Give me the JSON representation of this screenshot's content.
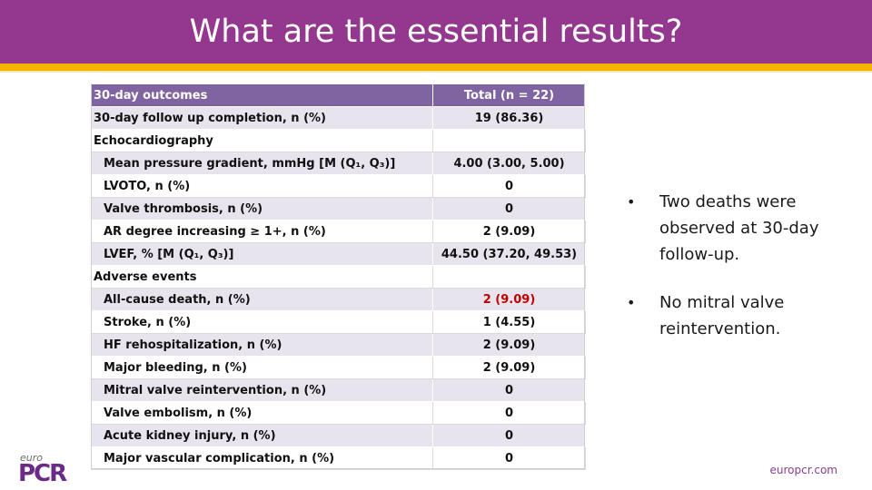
{
  "slide": {
    "title": "What are the essential results?",
    "colors": {
      "header": "#93388e",
      "accent_bar": "#f5b300",
      "table_header": "#8064a2",
      "highlight": "#c00000"
    }
  },
  "table": {
    "headers": [
      "30-day outcomes",
      "Total (n = 22)"
    ],
    "rows": [
      {
        "label": "30-day follow up completion, n (%)",
        "value": "19 (86.36)"
      },
      {
        "label": "Echocardiography",
        "value": ""
      },
      {
        "label": "Mean pressure gradient, mmHg [M (Q₁, Q₃)]",
        "value": "4.00 (3.00, 5.00)"
      },
      {
        "label": "LVOTO, n (%)",
        "value": "0"
      },
      {
        "label": "Valve thrombosis, n (%)",
        "value": "0"
      },
      {
        "label": "AR degree increasing ≥ 1+, n (%)",
        "value": "2 (9.09)"
      },
      {
        "label": "LVEF, % [M (Q₁, Q₃)]",
        "value": "44.50 (37.20, 49.53)"
      },
      {
        "label": "Adverse events",
        "value": ""
      },
      {
        "label": "All-cause death, n (%)",
        "value": "2 (9.09)"
      },
      {
        "label": "Stroke, n (%)",
        "value": "1 (4.55)"
      },
      {
        "label": "HF rehospitalization, n (%)",
        "value": "2 (9.09)"
      },
      {
        "label": "Major bleeding, n (%)",
        "value": "2 (9.09)"
      },
      {
        "label": "Mitral valve reintervention, n (%)",
        "value": "0"
      },
      {
        "label": "Valve embolism, n (%)",
        "value": "0"
      },
      {
        "label": "Acute kidney injury, n (%)",
        "value": "0"
      },
      {
        "label": "Major vascular complication, n (%)",
        "value": "0"
      }
    ]
  },
  "bullets": [
    "Two deaths were observed at 30-day follow-up.",
    "No mitral valve reintervention."
  ],
  "footer": {
    "logo_small": "euro",
    "logo_main": "PCR",
    "url": "europcr.com"
  }
}
